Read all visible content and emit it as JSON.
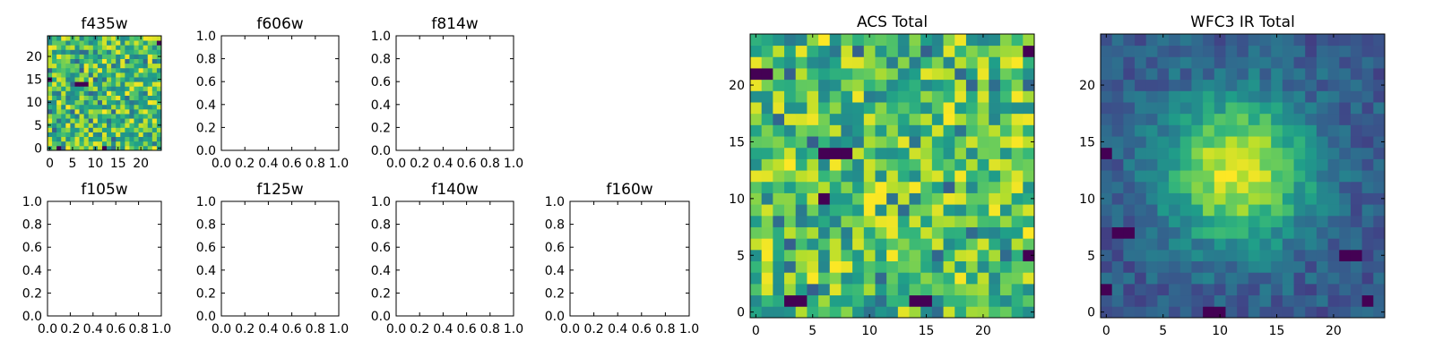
{
  "chart_data": [
    {
      "type": "heatmap",
      "title": "f435w",
      "colormap": "viridis",
      "grid": false,
      "grid_size": 25,
      "xlim": [
        -0.5,
        24.5
      ],
      "ylim": [
        -0.5,
        24.5
      ],
      "xticks": [
        0,
        5,
        10,
        15,
        20
      ],
      "yticks": [
        0,
        5,
        10,
        15,
        20
      ],
      "xtick_labels": [
        "0",
        "5",
        "10",
        "15",
        "20"
      ],
      "ytick_labels": [
        "0",
        "5",
        "10",
        "15",
        "20"
      ],
      "pattern": "noise",
      "seed": 7,
      "low_cells": [
        [
          6,
          14
        ],
        [
          7,
          14
        ],
        [
          8,
          14
        ],
        [
          2,
          0
        ],
        [
          12,
          0
        ],
        [
          24,
          23
        ],
        [
          0,
          15
        ]
      ]
    },
    {
      "type": "empty",
      "title": "f606w",
      "xlim": [
        0,
        1
      ],
      "ylim": [
        0,
        1
      ],
      "xticks": [
        0,
        0.2,
        0.4,
        0.6,
        0.8,
        1
      ],
      "yticks": [
        0,
        0.2,
        0.4,
        0.6,
        0.8,
        1
      ],
      "xtick_labels": [
        "0.0",
        "0.2",
        "0.4",
        "0.6",
        "0.8",
        "1.0"
      ],
      "ytick_labels": [
        "0.0",
        "0.2",
        "0.4",
        "0.6",
        "0.8",
        "1.0"
      ]
    },
    {
      "type": "empty",
      "title": "f814w",
      "xlim": [
        0,
        1
      ],
      "ylim": [
        0,
        1
      ],
      "xticks": [
        0,
        0.2,
        0.4,
        0.6,
        0.8,
        1
      ],
      "yticks": [
        0,
        0.2,
        0.4,
        0.6,
        0.8,
        1
      ],
      "xtick_labels": [
        "0.0",
        "0.2",
        "0.4",
        "0.6",
        "0.8",
        "1.0"
      ],
      "ytick_labels": [
        "0.0",
        "0.2",
        "0.4",
        "0.6",
        "0.8",
        "1.0"
      ]
    },
    {
      "type": "empty",
      "title": "f105w",
      "xlim": [
        0,
        1
      ],
      "ylim": [
        0,
        1
      ],
      "xticks": [
        0,
        0.2,
        0.4,
        0.6,
        0.8,
        1
      ],
      "yticks": [
        0,
        0.2,
        0.4,
        0.6,
        0.8,
        1
      ],
      "xtick_labels": [
        "0.0",
        "0.2",
        "0.4",
        "0.6",
        "0.8",
        "1.0"
      ],
      "ytick_labels": [
        "0.0",
        "0.2",
        "0.4",
        "0.6",
        "0.8",
        "1.0"
      ]
    },
    {
      "type": "empty",
      "title": "f125w",
      "xlim": [
        0,
        1
      ],
      "ylim": [
        0,
        1
      ],
      "xticks": [
        0,
        0.2,
        0.4,
        0.6,
        0.8,
        1
      ],
      "yticks": [
        0,
        0.2,
        0.4,
        0.6,
        0.8,
        1
      ],
      "xtick_labels": [
        "0.0",
        "0.2",
        "0.4",
        "0.6",
        "0.8",
        "1.0"
      ],
      "ytick_labels": [
        "0.0",
        "0.2",
        "0.4",
        "0.6",
        "0.8",
        "1.0"
      ]
    },
    {
      "type": "empty",
      "title": "f140w",
      "xlim": [
        0,
        1
      ],
      "ylim": [
        0,
        1
      ],
      "xticks": [
        0,
        0.2,
        0.4,
        0.6,
        0.8,
        1
      ],
      "yticks": [
        0,
        0.2,
        0.4,
        0.6,
        0.8,
        1
      ],
      "xtick_labels": [
        "0.0",
        "0.2",
        "0.4",
        "0.6",
        "0.8",
        "1.0"
      ],
      "ytick_labels": [
        "0.0",
        "0.2",
        "0.4",
        "0.6",
        "0.8",
        "1.0"
      ]
    },
    {
      "type": "empty",
      "title": "f160w",
      "xlim": [
        0,
        1
      ],
      "ylim": [
        0,
        1
      ],
      "xticks": [
        0,
        0.2,
        0.4,
        0.6,
        0.8,
        1
      ],
      "yticks": [
        0,
        0.2,
        0.4,
        0.6,
        0.8,
        1
      ],
      "xtick_labels": [
        "0.0",
        "0.2",
        "0.4",
        "0.6",
        "0.8",
        "1.0"
      ],
      "ytick_labels": [
        "0.0",
        "0.2",
        "0.4",
        "0.6",
        "0.8",
        "1.0"
      ]
    },
    {
      "type": "heatmap",
      "title": "ACS Total",
      "colormap": "viridis",
      "grid": false,
      "grid_size": 25,
      "xlim": [
        -0.5,
        24.5
      ],
      "ylim": [
        -0.5,
        24.5
      ],
      "xticks": [
        0,
        5,
        10,
        15,
        20
      ],
      "yticks": [
        0,
        5,
        10,
        15,
        20
      ],
      "xtick_labels": [
        "0",
        "5",
        "10",
        "15",
        "20"
      ],
      "ytick_labels": [
        "0",
        "5",
        "10",
        "15",
        "20"
      ],
      "pattern": "noise",
      "seed": 11,
      "low_cells": [
        [
          6,
          14
        ],
        [
          7,
          14
        ],
        [
          8,
          14
        ],
        [
          3,
          1
        ],
        [
          4,
          1
        ],
        [
          14,
          1
        ],
        [
          15,
          1
        ],
        [
          24,
          23
        ],
        [
          0,
          21
        ],
        [
          1,
          21
        ],
        [
          24,
          5
        ],
        [
          6,
          10
        ]
      ]
    },
    {
      "type": "heatmap",
      "title": "WFC3 IR Total",
      "colormap": "viridis",
      "grid": false,
      "grid_size": 25,
      "xlim": [
        -0.5,
        24.5
      ],
      "ylim": [
        -0.5,
        24.5
      ],
      "xticks": [
        0,
        5,
        10,
        15,
        20
      ],
      "yticks": [
        0,
        5,
        10,
        15,
        20
      ],
      "xtick_labels": [
        "0",
        "5",
        "10",
        "15",
        "20"
      ],
      "ytick_labels": [
        "0",
        "5",
        "10",
        "15",
        "20"
      ],
      "pattern": "blob",
      "seed": 23,
      "peak": [
        11.5,
        12.5
      ],
      "sigma": 4.5,
      "low_cells": [
        [
          1,
          7
        ],
        [
          2,
          7
        ],
        [
          21,
          5
        ],
        [
          22,
          5
        ],
        [
          9,
          0
        ],
        [
          10,
          0
        ],
        [
          0,
          14
        ],
        [
          0,
          2
        ],
        [
          23,
          1
        ]
      ]
    }
  ]
}
